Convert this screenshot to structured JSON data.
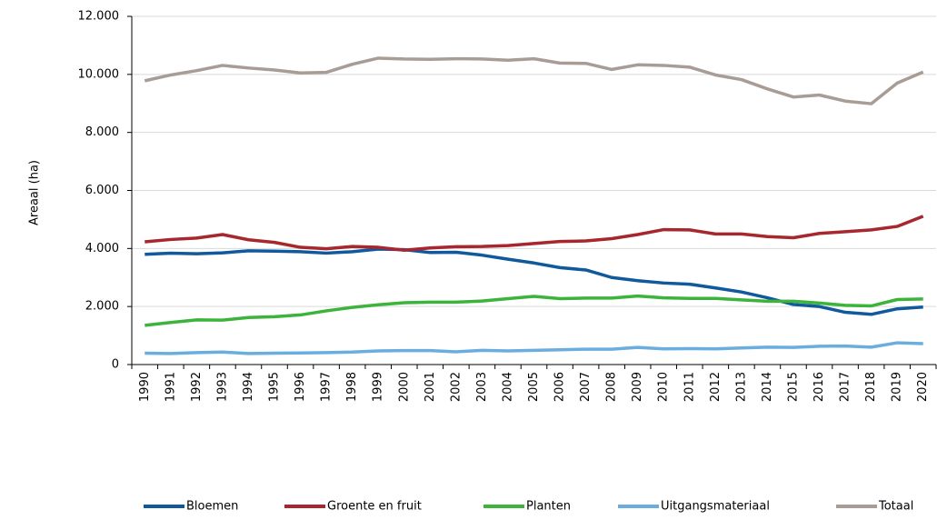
{
  "chart_data": {
    "type": "line",
    "y_label": "Areaal (ha)",
    "categories": [
      "1990",
      "1991",
      "1992",
      "1993",
      "1994",
      "1995",
      "1996",
      "1997",
      "1998",
      "1999",
      "2000",
      "2001",
      "2002",
      "2003",
      "2004",
      "2005",
      "2006",
      "2007",
      "2008",
      "2009",
      "2010",
      "2011",
      "2012",
      "2013",
      "2014",
      "2015",
      "2016",
      "2017",
      "2018",
      "2019",
      "2020"
    ],
    "series": [
      {
        "name": "Bloemen",
        "color": "#10599c",
        "values": [
          3800,
          3840,
          3820,
          3850,
          3920,
          3910,
          3890,
          3840,
          3890,
          3980,
          3960,
          3860,
          3870,
          3770,
          3630,
          3500,
          3340,
          3260,
          3000,
          2890,
          2810,
          2770,
          2640,
          2500,
          2300,
          2070,
          2000,
          1800,
          1730,
          1920,
          1980
        ]
      },
      {
        "name": "Groente en fruit",
        "color": "#a8262e",
        "values": [
          4230,
          4310,
          4360,
          4480,
          4300,
          4210,
          4040,
          3990,
          4070,
          4040,
          3940,
          4020,
          4060,
          4070,
          4100,
          4170,
          4240,
          4260,
          4340,
          4480,
          4650,
          4640,
          4500,
          4500,
          4410,
          4370,
          4520,
          4580,
          4640,
          4760,
          5110
        ]
      },
      {
        "name": "Planten",
        "color": "#3cb43c",
        "values": [
          1350,
          1450,
          1540,
          1530,
          1620,
          1650,
          1710,
          1850,
          1970,
          2060,
          2130,
          2150,
          2150,
          2190,
          2270,
          2350,
          2270,
          2290,
          2290,
          2360,
          2300,
          2280,
          2280,
          2230,
          2180,
          2180,
          2120,
          2040,
          2020,
          2240,
          2260
        ]
      },
      {
        "name": "Uitgangsmateriaal",
        "color": "#6aaee0",
        "values": [
          390,
          380,
          410,
          430,
          380,
          390,
          400,
          410,
          430,
          470,
          480,
          480,
          440,
          490,
          470,
          490,
          510,
          530,
          530,
          590,
          540,
          550,
          540,
          570,
          600,
          590,
          630,
          640,
          600,
          750,
          720
        ]
      },
      {
        "name": "Totaal",
        "color": "#a79d96",
        "values": [
          9780,
          9980,
          10130,
          10310,
          10220,
          10150,
          10050,
          10070,
          10350,
          10560,
          10530,
          10520,
          10540,
          10530,
          10490,
          10540,
          10390,
          10380,
          10170,
          10330,
          10310,
          10250,
          9980,
          9820,
          9500,
          9220,
          9290,
          9080,
          8990,
          9700,
          10080
        ]
      }
    ],
    "ylim": [
      0,
      12000
    ],
    "yticks": [
      0,
      {
        "value": 2000,
        "label": "2.000"
      },
      {
        "value": 4000,
        "label": "4.000"
      },
      {
        "value": 6000,
        "label": "6.000"
      },
      {
        "value": 8000,
        "label": "8.000"
      },
      {
        "value": 10000,
        "label": "10.000"
      },
      {
        "value": 12000,
        "label": "12.000"
      }
    ],
    "grid": true,
    "legend": "bottom"
  }
}
